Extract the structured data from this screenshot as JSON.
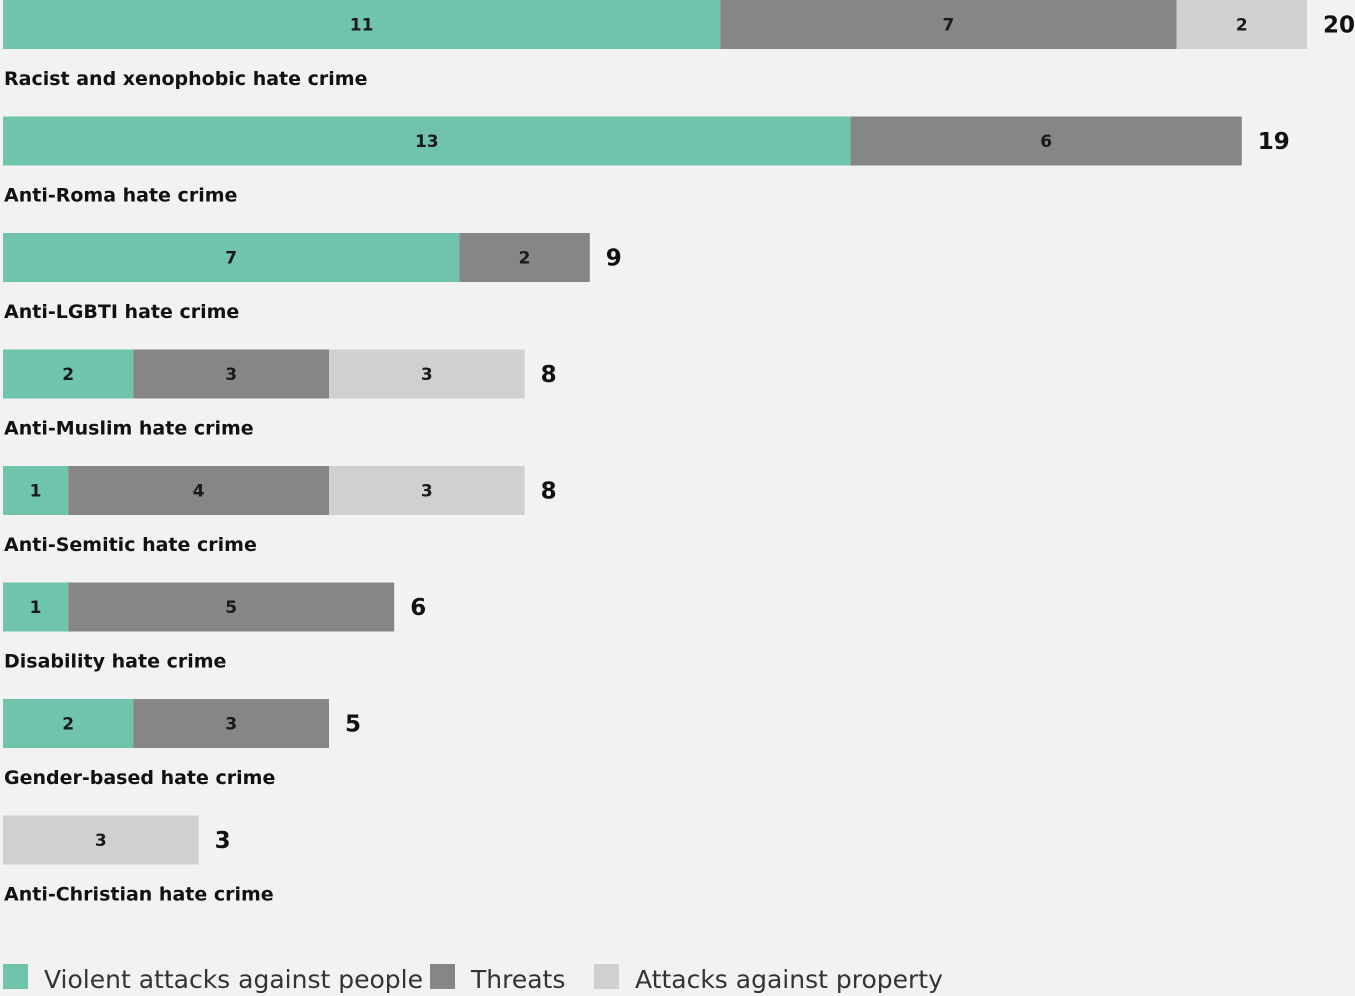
{
  "chart_data": {
    "type": "bar",
    "orientation": "horizontal",
    "stacked": true,
    "categories": [
      "Racist and xenophobic hate crime",
      "Anti-Roma hate crime",
      "Anti-LGBTI hate crime",
      "Anti-Muslim hate crime",
      "Anti-Semitic hate crime",
      "Disability hate crime",
      "Gender-based hate crime",
      "Anti-Christian hate crime"
    ],
    "series": [
      {
        "name": "Violent attacks against people",
        "color": "#6fc4ab",
        "values": [
          11,
          13,
          7,
          2,
          1,
          1,
          2,
          0
        ]
      },
      {
        "name": "Threats",
        "color": "#868686",
        "values": [
          7,
          6,
          2,
          3,
          4,
          5,
          3,
          0
        ]
      },
      {
        "name": "Attacks against property",
        "color": "#cfd1d0",
        "values": [
          2,
          0,
          0,
          3,
          3,
          0,
          0,
          3
        ]
      }
    ],
    "totals": [
      20,
      19,
      9,
      8,
      8,
      6,
      5,
      3
    ],
    "legend_position": "bottom-left",
    "grid": false
  }
}
